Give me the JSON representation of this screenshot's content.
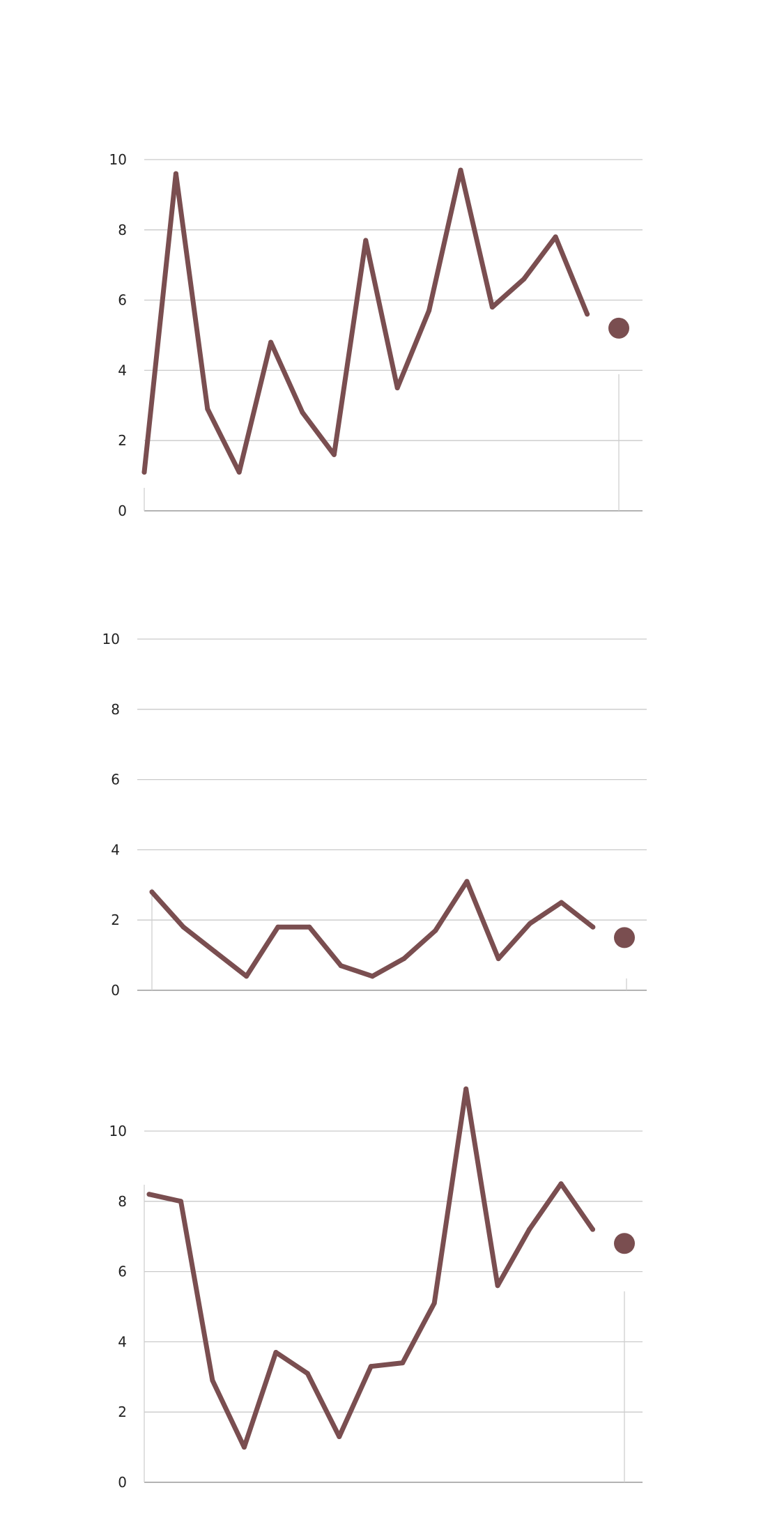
{
  "colors": {
    "line": "#7a4e50",
    "gridline": "#c9c9c9",
    "axis": "#9a9a9a",
    "background": "#ffffff"
  },
  "chart_data": [
    {
      "type": "line",
      "ylim": [
        0,
        10
      ],
      "yticks": [
        "0",
        "2",
        "4",
        "6",
        "8",
        "10"
      ],
      "grid": true,
      "series": [
        {
          "values": [
            1.1,
            9.6,
            2.9,
            1.1,
            4.8,
            2.8,
            1.6,
            7.7,
            3.5,
            5.7,
            9.7,
            5.8,
            6.6,
            7.8,
            5.6,
            5.2
          ]
        }
      ],
      "marker": "last-point"
    },
    {
      "type": "line",
      "ylim": [
        0,
        10
      ],
      "yticks": [
        "0",
        "2",
        "4",
        "6",
        "8",
        "10"
      ],
      "grid": true,
      "series": [
        {
          "values": [
            2.8,
            1.8,
            1.1,
            0.4,
            1.8,
            1.8,
            0.7,
            0.4,
            0.9,
            1.7,
            3.1,
            0.9,
            1.9,
            2.5,
            1.8,
            1.5
          ]
        }
      ],
      "marker": "last-point"
    },
    {
      "type": "line",
      "ylim": [
        0,
        11.2
      ],
      "yticks": [
        "0",
        "2",
        "4",
        "6",
        "8",
        "10"
      ],
      "grid": true,
      "series": [
        {
          "values": [
            8.2,
            8.0,
            2.9,
            1.0,
            3.7,
            3.1,
            1.3,
            3.3,
            3.4,
            5.1,
            11.2,
            5.6,
            7.2,
            8.5,
            7.2,
            6.8
          ]
        }
      ],
      "marker": "last-point"
    }
  ]
}
